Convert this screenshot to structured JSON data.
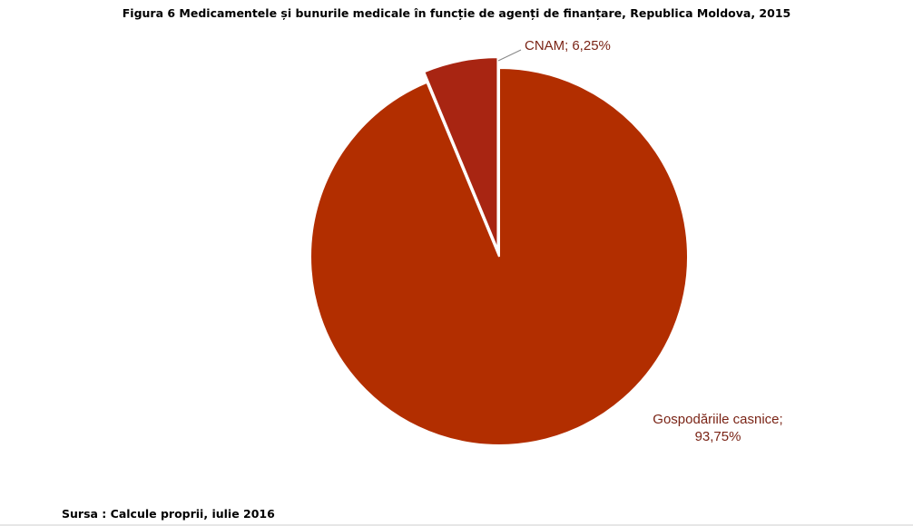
{
  "chart_data": {
    "type": "pie",
    "title": "Figura 6 Medicamentele și bunurile medicale în funcție de agenți de finanțare, Republica Moldova, 2015",
    "categories": [
      "Gospodăriile casnice;",
      "CNAM;"
    ],
    "values": [
      93.75,
      6.25
    ],
    "value_labels": [
      "93,75%",
      "6,25%"
    ],
    "colors": [
      "#b22e00",
      "#a82512"
    ],
    "source": "Sursa : Calcule proprii, iulie 2016"
  }
}
